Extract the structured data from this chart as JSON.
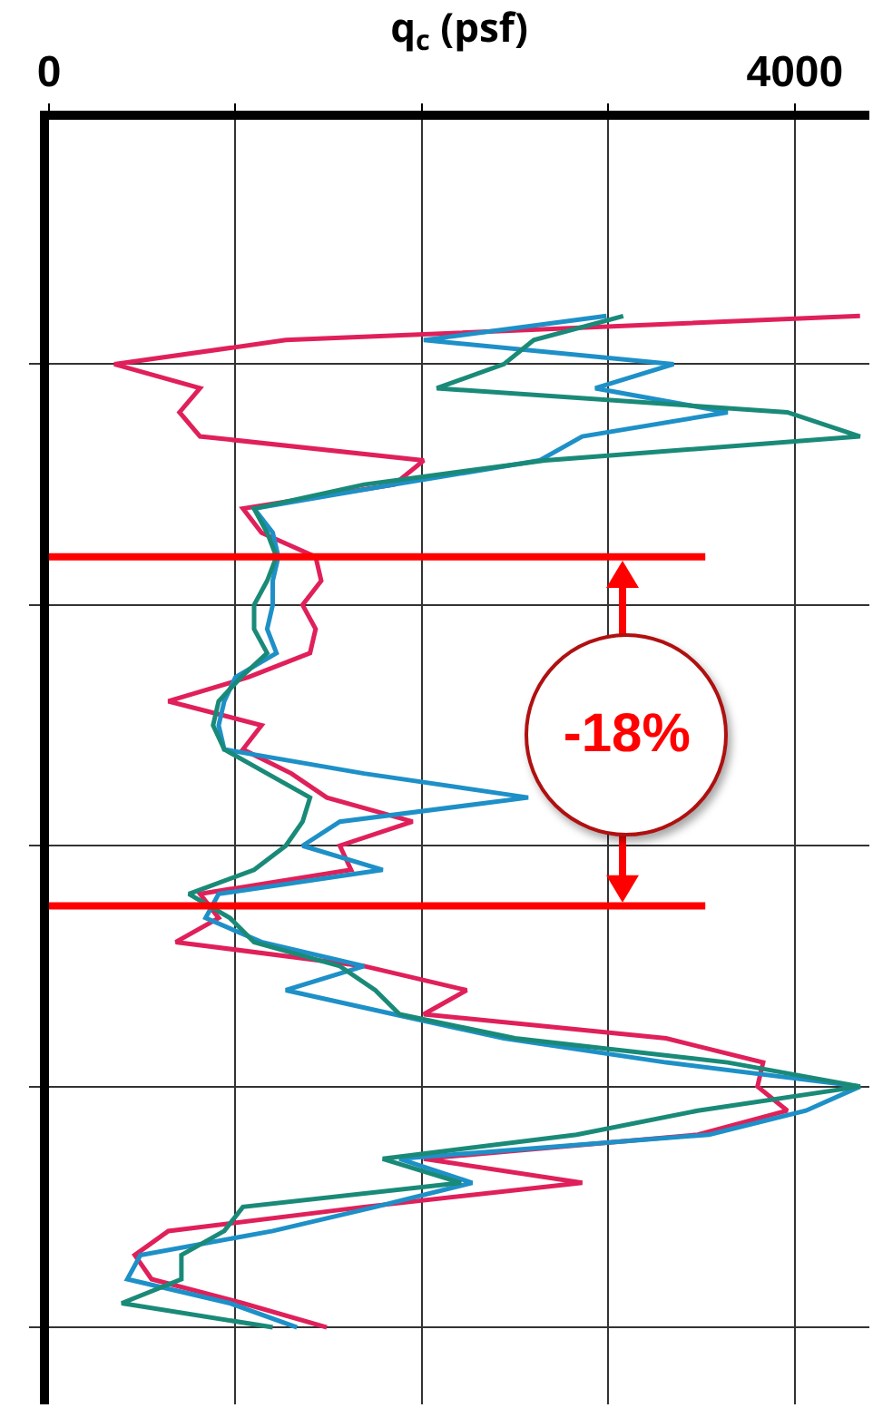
{
  "chart_data": {
    "type": "line",
    "orientation": "horizontal",
    "xlabel": "q$_{c}$ (psf)",
    "categories": [
      null,
      null,
      null,
      null,
      null,
      null,
      null,
      null,
      null,
      null,
      null,
      null,
      null,
      null,
      null,
      null,
      null,
      null,
      null,
      null,
      null,
      null,
      null,
      null,
      null,
      null,
      null,
      null,
      null,
      null,
      null,
      null,
      null,
      null,
      null,
      null,
      null,
      null,
      null,
      null,
      null,
      null,
      null,
      null,
      null,
      null,
      null,
      null,
      null,
      null,
      null,
      null,
      null,
      null
    ],
    "series": [
      {
        "color": "#e0205a",
        "values": [
          null,
          null,
          null,
          null,
          null,
          null,
          null,
          null,
          4350,
          1270,
          350,
          810,
          700,
          810,
          2010,
          1850,
          1040,
          1140,
          1430,
          1460,
          1360,
          1430,
          1400,
          1070,
          640,
          1140,
          1040,
          1300,
          1490,
          1950,
          1560,
          1620,
          810,
          910,
          680,
          1690,
          2240,
          2010,
          3310,
          3830,
          3800,
          3960,
          3480,
          2010,
          2860,
          1690,
          640,
          460,
          550,
          1040,
          1490,
          null,
          null,
          null
        ]
      },
      {
        "color": "#1e90c8",
        "values": [
          null,
          null,
          null,
          null,
          null,
          null,
          null,
          null,
          2990,
          2010,
          3350,
          2930,
          3640,
          2860,
          2630,
          1850,
          1100,
          1200,
          1230,
          1200,
          1200,
          1170,
          1220,
          1000,
          940,
          910,
          940,
          1690,
          2570,
          1560,
          1360,
          1790,
          910,
          840,
          1140,
          1690,
          1270,
          1850,
          2440,
          3310,
          4350,
          4060,
          3540,
          1880,
          2270,
          1750,
          1200,
          490,
          420,
          970,
          1330,
          null,
          null,
          null
        ]
      },
      {
        "color": "#1a8a78",
        "values": [
          null,
          null,
          null,
          null,
          null,
          null,
          null,
          null,
          3080,
          2600,
          2440,
          2080,
          3960,
          4350,
          2660,
          1690,
          1100,
          1170,
          1220,
          1170,
          1100,
          1100,
          1170,
          1030,
          910,
          880,
          940,
          1170,
          1400,
          1360,
          1270,
          1100,
          750,
          970,
          1100,
          1560,
          1750,
          1880,
          2500,
          3640,
          4350,
          3480,
          2830,
          1790,
          2210,
          1040,
          940,
          710,
          710,
          390,
          1200,
          null,
          null,
          null
        ]
      }
    ],
    "xlim": [
      0,
      4400
    ],
    "xticks": [
      0,
      {
        "value": 1000,
        "label": null
      },
      {
        "value": 2000,
        "label": null
      },
      {
        "value": 3000,
        "label": null
      },
      4000
    ],
    "annotations": [
      "-18%"
    ],
    "grid": true,
    "tick_labels": "x",
    "marker": "none",
    "line_style": "solid"
  }
}
